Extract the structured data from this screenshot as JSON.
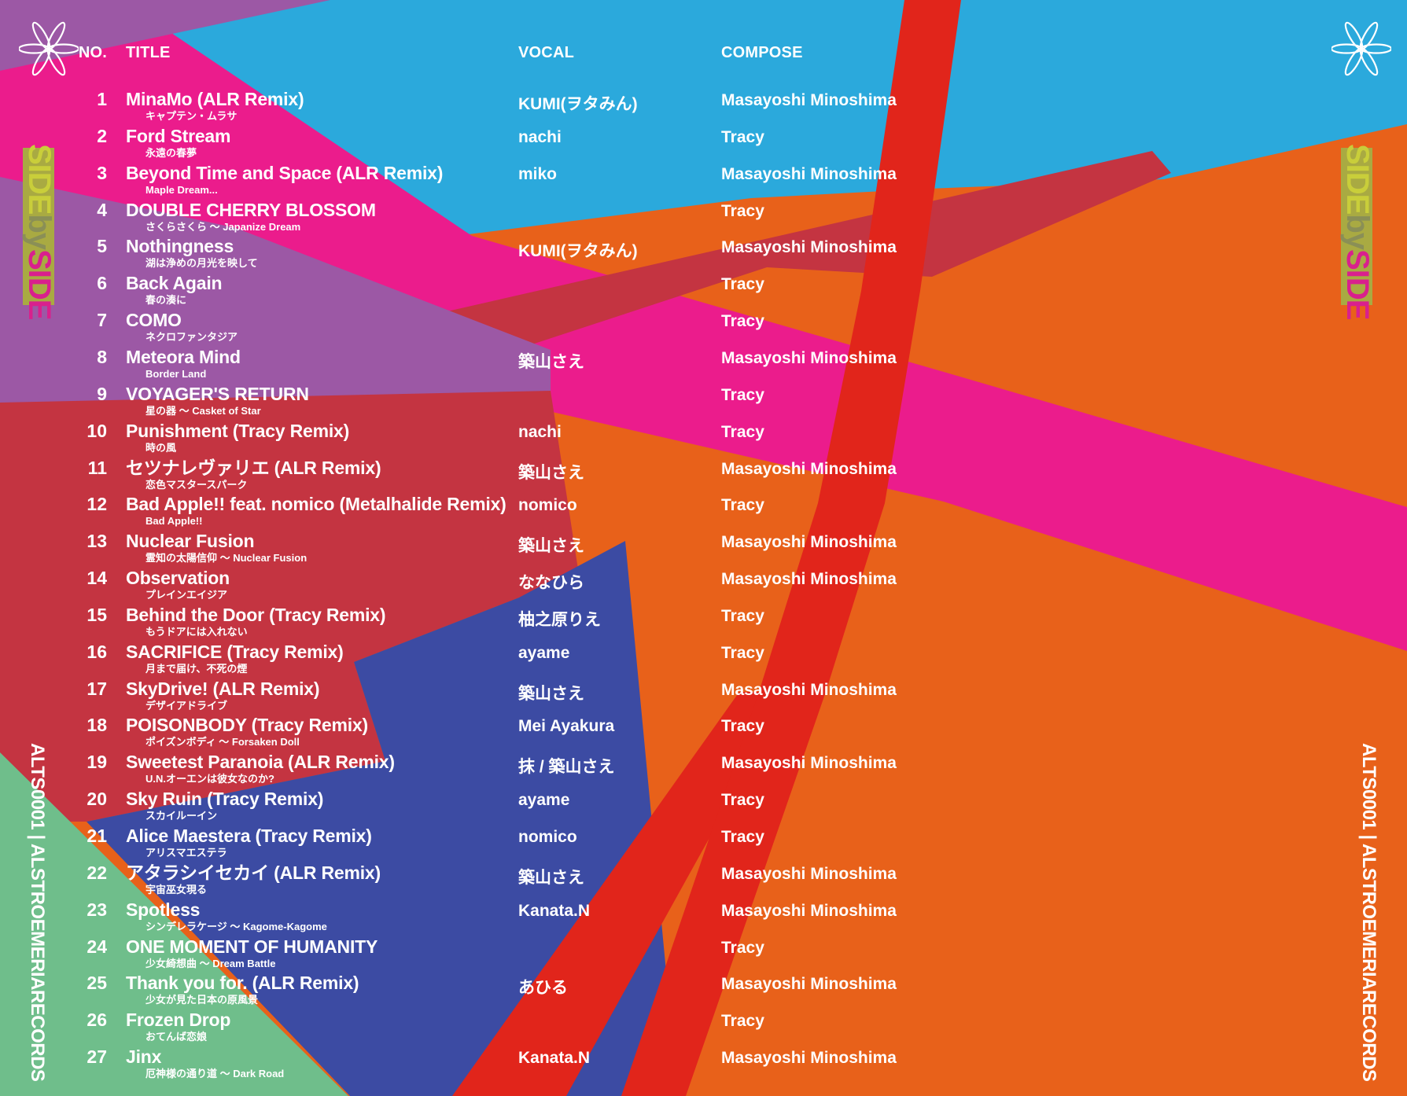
{
  "header": {
    "no": "NO.",
    "title": "TITLE",
    "vocal": "VOCAL",
    "compose": "COMPOSE"
  },
  "spine": {
    "side_first": "SIDE",
    "side_by": "by",
    "side_second": "SIDE",
    "catalog": "ALTS0001 | ALSTROEMERIARECORDS"
  },
  "tracks": [
    {
      "no": "1",
      "title": "MinaMo (ALR Remix)",
      "subtitle": "キャプテン・ムラサ",
      "vocal": "KUMI(ヲタみん)",
      "compose": "Masayoshi Minoshima"
    },
    {
      "no": "2",
      "title": "Ford Stream",
      "subtitle": "永遠の春夢",
      "vocal": "nachi",
      "compose": "Tracy"
    },
    {
      "no": "3",
      "title": "Beyond Time and Space (ALR Remix)",
      "subtitle": "Maple Dream...",
      "vocal": "miko",
      "compose": "Masayoshi Minoshima"
    },
    {
      "no": "4",
      "title": "DOUBLE CHERRY BLOSSOM",
      "subtitle": "さくらさくら ～ Japanize Dream",
      "vocal": "",
      "compose": "Tracy"
    },
    {
      "no": "5",
      "title": "Nothingness",
      "subtitle": "湖は浄めの月光を映して",
      "vocal": "KUMI(ヲタみん)",
      "compose": "Masayoshi Minoshima"
    },
    {
      "no": "6",
      "title": "Back Again",
      "subtitle": "春の湊に",
      "vocal": "",
      "compose": "Tracy"
    },
    {
      "no": "7",
      "title": "COMO",
      "subtitle": "ネクロファンタジア",
      "vocal": "",
      "compose": "Tracy"
    },
    {
      "no": "8",
      "title": "Meteora Mind",
      "subtitle": "Border Land",
      "vocal": "築山さえ",
      "compose": "Masayoshi Minoshima"
    },
    {
      "no": "9",
      "title": "VOYAGER'S RETURN",
      "subtitle": "星の器 ～ Casket of Star",
      "vocal": "",
      "compose": "Tracy"
    },
    {
      "no": "10",
      "title": "Punishment (Tracy Remix)",
      "subtitle": "時の風",
      "vocal": "nachi",
      "compose": "Tracy"
    },
    {
      "no": "11",
      "title": "セツナレヴァリエ (ALR Remix)",
      "subtitle": "恋色マスタースパーク",
      "vocal": "築山さえ",
      "compose": "Masayoshi Minoshima"
    },
    {
      "no": "12",
      "title": "Bad Apple!! feat. nomico (Metalhalide Remix)",
      "subtitle": "Bad Apple!!",
      "vocal": "nomico",
      "compose": "Tracy"
    },
    {
      "no": "13",
      "title": "Nuclear Fusion",
      "subtitle": "霊知の太陽信仰 ～ Nuclear Fusion",
      "vocal": "築山さえ",
      "compose": "Masayoshi Minoshima"
    },
    {
      "no": "14",
      "title": "Observation",
      "subtitle": "プレインエイジア",
      "vocal": "ななひら",
      "compose": "Masayoshi Minoshima"
    },
    {
      "no": "15",
      "title": "Behind the Door (Tracy Remix)",
      "subtitle": "もうドアには入れない",
      "vocal": "柚之原りえ",
      "compose": "Tracy"
    },
    {
      "no": "16",
      "title": "SACRIFICE (Tracy Remix)",
      "subtitle": "月まで届け、不死の煙",
      "vocal": "ayame",
      "compose": "Tracy"
    },
    {
      "no": "17",
      "title": "SkyDrive! (ALR Remix)",
      "subtitle": "デザイアドライブ",
      "vocal": "築山さえ",
      "compose": "Masayoshi Minoshima"
    },
    {
      "no": "18",
      "title": "POISONBODY (Tracy Remix)",
      "subtitle": "ポイズンボディ ～ Forsaken Doll",
      "vocal": "Mei Ayakura",
      "compose": "Tracy"
    },
    {
      "no": "19",
      "title": "Sweetest Paranoia (ALR Remix)",
      "subtitle": "U.N.オーエンは彼女なのか?",
      "vocal": "抹 / 築山さえ",
      "compose": "Masayoshi Minoshima"
    },
    {
      "no": "20",
      "title": "Sky Ruin (Tracy Remix)",
      "subtitle": "スカイルーイン",
      "vocal": "ayame",
      "compose": "Tracy"
    },
    {
      "no": "21",
      "title": "Alice Maestera (Tracy Remix)",
      "subtitle": "アリスマエステラ",
      "vocal": "nomico",
      "compose": "Tracy"
    },
    {
      "no": "22",
      "title": "アタラシイセカイ (ALR Remix)",
      "subtitle": "宇宙巫女現る",
      "vocal": "築山さえ",
      "compose": "Masayoshi Minoshima"
    },
    {
      "no": "23",
      "title": "Spotless",
      "subtitle": "シンデレラケージ ～ Kagome-Kagome",
      "vocal": "Kanata.N",
      "compose": "Masayoshi Minoshima"
    },
    {
      "no": "24",
      "title": "ONE MOMENT OF HUMANITY",
      "subtitle": "少女綺想曲 ～ Dream Battle",
      "vocal": "",
      "compose": "Tracy"
    },
    {
      "no": "25",
      "title": "Thank you for. (ALR Remix)",
      "subtitle": "少女が見た日本の原風景",
      "vocal": "あひる",
      "compose": "Masayoshi Minoshima"
    },
    {
      "no": "26",
      "title": "Frozen Drop",
      "subtitle": "おてんば恋娘",
      "vocal": "",
      "compose": "Tracy"
    },
    {
      "no": "27",
      "title": "Jinx",
      "subtitle": "厄神様の通り道 ～ Dark Road",
      "vocal": "Kanata.N",
      "compose": "Masayoshi Minoshima"
    }
  ],
  "colors": {
    "orange": "#E8611A",
    "skyBlue": "#2BA9DC",
    "pink": "#EB1C8C",
    "crimson": "#C43441",
    "purple": "#9C58A5",
    "royalBlue": "#3C4BA3",
    "green": "#6FBE8B",
    "stripeRed": "#E1251B",
    "oliveBlock": "#A9AA42",
    "spineYellow": "#C9CE3A",
    "spineBy": "#8A8F56",
    "spineMagenta": "#D9208D",
    "textWhite": "#FFFFFF"
  }
}
